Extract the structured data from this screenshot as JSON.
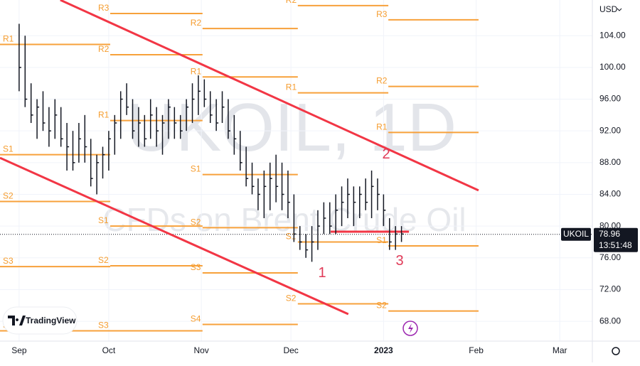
{
  "chart_data": {
    "type": "ohlc",
    "watermark": "UKOIL, 1D",
    "watermark_subtitle": "CFDs on Brent Crude Oil",
    "currency": "USD",
    "x": [
      0,
      2,
      4,
      6,
      8,
      10,
      12,
      14,
      16,
      18,
      20,
      22,
      24,
      26,
      28,
      30,
      32,
      34,
      36,
      38,
      40,
      42,
      44,
      46,
      48,
      50,
      52,
      54,
      56,
      58,
      60,
      62,
      64,
      66,
      68,
      70,
      72,
      74,
      76,
      78,
      80,
      82,
      84,
      86,
      88,
      90,
      92,
      94,
      96,
      98,
      100,
      102,
      104,
      106,
      108,
      110,
      112,
      114,
      116,
      118,
      120,
      122,
      124,
      126,
      128
    ],
    "high": [
      105.5,
      104,
      98,
      96,
      97,
      95,
      96,
      95,
      93,
      92,
      93,
      94,
      91,
      89,
      90,
      92,
      94,
      97,
      98,
      96,
      95,
      94,
      96,
      95,
      94,
      96,
      95,
      94,
      96,
      98,
      99,
      98.5,
      97,
      96,
      97,
      96,
      94,
      92,
      90,
      88,
      86,
      87,
      88,
      89,
      88,
      87,
      84,
      80,
      79,
      80,
      82,
      83,
      83,
      84,
      85,
      86,
      85,
      85,
      86,
      87,
      86,
      84,
      81,
      80,
      80
    ],
    "low": [
      97,
      95,
      93,
      91,
      92,
      90,
      91,
      90,
      87,
      87,
      88,
      88,
      85,
      84,
      86,
      87,
      89,
      91,
      94,
      91,
      90,
      90,
      91,
      90,
      89,
      91,
      91,
      91,
      92,
      93,
      94,
      95,
      93,
      92,
      93,
      91,
      89,
      87,
      85,
      84,
      82,
      81,
      82,
      83,
      82,
      81,
      78,
      77,
      76,
      75.5,
      77,
      79,
      79,
      79,
      80,
      81,
      80,
      81,
      82,
      81,
      82,
      80,
      77,
      77,
      78
    ],
    "close": [
      100,
      96,
      94,
      95,
      93,
      92,
      94,
      91,
      90,
      88,
      91,
      90,
      86,
      88,
      89,
      91,
      93,
      96,
      95,
      92,
      93,
      91,
      94,
      92,
      93,
      95,
      93,
      92,
      95,
      96,
      97,
      96,
      94,
      93,
      95,
      92,
      91,
      88,
      86,
      85,
      84,
      85,
      86,
      85,
      84,
      83,
      79,
      78,
      77,
      78,
      80,
      81,
      80,
      82,
      83,
      84,
      83,
      84,
      83,
      85,
      84,
      82,
      78,
      79,
      79
    ],
    "color": "#131722",
    "xlim": [
      -6.4,
      191.9
    ],
    "xticks": [
      {
        "value": 0,
        "label": "Sep"
      },
      {
        "value": 30,
        "label": "Oct"
      },
      {
        "value": 61,
        "label": "Nov"
      },
      {
        "value": 91,
        "label": "Dec"
      },
      {
        "value": 122,
        "label": "2023"
      },
      {
        "value": 153,
        "label": "Feb"
      },
      {
        "value": 181,
        "label": "Mar"
      }
    ],
    "ylim": [
      65.5,
      108.5
    ],
    "yticks": [
      {
        "value": 68,
        "label": "68.00"
      },
      {
        "value": 72,
        "label": "72.00"
      },
      {
        "value": 76,
        "label": "76.00"
      },
      {
        "value": 80,
        "label": "80.00"
      },
      {
        "value": 84,
        "label": "84.00"
      },
      {
        "value": 88,
        "label": "88.00"
      },
      {
        "value": 92,
        "label": "92.00"
      },
      {
        "value": 96,
        "label": "96.00"
      },
      {
        "value": 100,
        "label": "100.00"
      },
      {
        "value": 104,
        "label": "104.00"
      }
    ],
    "pivots": [
      {
        "label": "R1",
        "value": 102.9,
        "start": -6.4,
        "end": 30.5
      },
      {
        "label": "S1",
        "value": 89,
        "start": -6.4,
        "end": 30.5
      },
      {
        "label": "S2",
        "value": 83.1,
        "start": -6.4,
        "end": 30.5
      },
      {
        "label": "S3",
        "value": 74.9,
        "start": -6.4,
        "end": 30.5
      },
      {
        "label": "S4",
        "value": 66.8,
        "start": -6.4,
        "end": 30.5
      },
      {
        "label": "R3",
        "value": 106.8,
        "start": 30.5,
        "end": 61.4
      },
      {
        "label": "R2",
        "value": 101.6,
        "start": 30.5,
        "end": 61.4
      },
      {
        "label": "R1",
        "value": 93.3,
        "start": 30.5,
        "end": 61.4
      },
      {
        "label": "S1",
        "value": 80,
        "start": 30.5,
        "end": 61.4
      },
      {
        "label": "S2",
        "value": 75,
        "start": 30.5,
        "end": 61.4
      },
      {
        "label": "S3",
        "value": 66.8,
        "start": 30.5,
        "end": 61.4
      },
      {
        "label": "R2",
        "value": 104.9,
        "start": 61.4,
        "end": 93.3
      },
      {
        "label": "R1",
        "value": 98.8,
        "start": 61.4,
        "end": 93.3
      },
      {
        "label": "S1",
        "value": 86.5,
        "start": 61.4,
        "end": 93.3
      },
      {
        "label": "S2",
        "value": 79.8,
        "start": 61.4,
        "end": 93.3
      },
      {
        "label": "S3",
        "value": 74.1,
        "start": 61.4,
        "end": 93.3
      },
      {
        "label": "S4",
        "value": 67.6,
        "start": 61.4,
        "end": 93.3
      },
      {
        "label": "R2",
        "value": 107.8,
        "start": 93.3,
        "end": 123.6
      },
      {
        "label": "R1",
        "value": 96.8,
        "start": 93.3,
        "end": 123.6
      },
      {
        "label": "S1",
        "value": 78,
        "start": 93.3,
        "end": 123.6
      },
      {
        "label": "S2",
        "value": 70.2,
        "start": 93.3,
        "end": 123.6
      },
      {
        "label": "R3",
        "value": 106,
        "start": 123.6,
        "end": 153.8
      },
      {
        "label": "R2",
        "value": 97.6,
        "start": 123.6,
        "end": 153.8
      },
      {
        "label": "R1",
        "value": 91.8,
        "start": 123.6,
        "end": 153.8
      },
      {
        "label": "S1",
        "value": 77.5,
        "start": 123.6,
        "end": 153.8
      },
      {
        "label": "S2",
        "value": 69.3,
        "start": 123.6,
        "end": 153.8
      }
    ],
    "trendlines": [
      {
        "x": [
          13.8,
          153.8
        ],
        "y": [
          108.5,
          84.5
        ]
      },
      {
        "x": [
          -6.4,
          110.2
        ],
        "y": [
          88.6,
          68.9
        ]
      },
      {
        "x": [
          104.3,
          130.5
        ],
        "y": [
          79.3,
          79.3
        ]
      }
    ],
    "annotations": [
      "1",
      "2",
      "3"
    ],
    "last_symbol": "UKOIL",
    "last_price": 78.96,
    "last_price_label": "78.96",
    "countdown": "13:51:48",
    "logo": "TradingView"
  }
}
